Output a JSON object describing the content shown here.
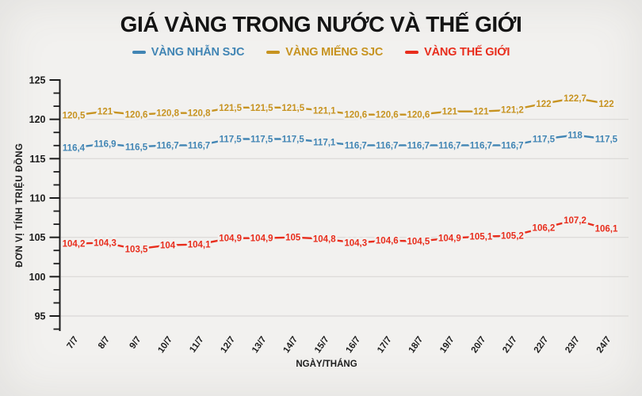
{
  "title": "GIÁ VÀNG TRONG NƯỚC VÀ THẾ GIỚI",
  "colors": {
    "background": "#f2f1ef",
    "grid": "#dad8d6",
    "axis": "#1c1c1c",
    "tick_label": "#1c1c1c",
    "series_blue": "#4185b4",
    "series_gold": "#c79320",
    "series_red": "#e82d1c"
  },
  "chart_data": {
    "type": "line",
    "title": "GIÁ VÀNG TRONG NƯỚC VÀ THẾ GIỚI",
    "xlabel": "NGÀY/THÁNG",
    "ylabel": "ĐƠN VỊ TÍNH TRIỆU ĐỒNG",
    "ylim": [
      95,
      125
    ],
    "ytick_interval": 5,
    "yticks": [
      125,
      120,
      115,
      110,
      105,
      100,
      95
    ],
    "grid": true,
    "legend_position": "top",
    "decimal_separator": ",",
    "categories": [
      "7/7",
      "8/7",
      "9/7",
      "10/7",
      "11/7",
      "12/7",
      "13/7",
      "14/7",
      "15/7",
      "16/7",
      "17/7",
      "18/7",
      "19/7",
      "20/7",
      "21/7",
      "22/7",
      "23/7",
      "24/7"
    ],
    "series": [
      {
        "name": "VÀNG NHẪN SJC",
        "color": "#4185b4",
        "values": [
          116.4,
          116.9,
          116.5,
          116.7,
          116.7,
          117.5,
          117.5,
          117.5,
          117.1,
          116.7,
          116.7,
          116.7,
          116.7,
          116.7,
          116.7,
          117.5,
          118,
          117.5
        ]
      },
      {
        "name": "VÀNG MIẾNG SJC",
        "color": "#c79320",
        "values": [
          120.5,
          121,
          120.6,
          120.8,
          120.8,
          121.5,
          121.5,
          121.5,
          121.1,
          120.6,
          120.6,
          120.6,
          121,
          121,
          121.2,
          122,
          122.7,
          122
        ]
      },
      {
        "name": "VÀNG THẾ GIỚI",
        "color": "#e82d1c",
        "values": [
          104.2,
          104.3,
          103.5,
          104,
          104.1,
          104.9,
          104.9,
          105,
          104.8,
          104.3,
          104.6,
          104.5,
          104.9,
          105.1,
          105.2,
          106.2,
          107.2,
          106.1
        ]
      }
    ]
  }
}
